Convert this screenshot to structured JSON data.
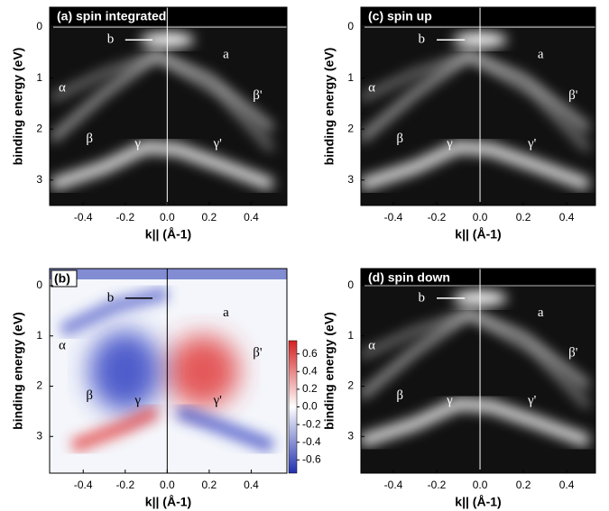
{
  "figure": {
    "panels": [
      {
        "title": "(a) spin integrated",
        "x_label": "k|| (Å-1)",
        "y_label": "binding energy (eV)",
        "xlim": [
          -0.56,
          0.57
        ],
        "ylim": [
          -0.39,
          3.5
        ],
        "xticks": [
          -0.4,
          -0.2,
          {
            "value": 0,
            "label": "0.0"
          },
          0.2,
          0.4
        ],
        "yticks": [
          0,
          1,
          2,
          3
        ],
        "annotations": [
          "b",
          "a",
          "α",
          "β'",
          "β",
          "γ",
          "γ'"
        ]
      },
      {
        "title": "(b)",
        "x_label": "k|| (Å-1)",
        "y_label": "binding energy (eV)",
        "xlim": [
          -0.56,
          0.57
        ],
        "ylim": [
          -0.34,
          3.73
        ],
        "xticks": [
          -0.4,
          -0.2,
          {
            "value": 0,
            "label": "0.0"
          },
          0.2,
          0.4
        ],
        "yticks": [
          0,
          1,
          2,
          3
        ],
        "annotations": [
          "b",
          "a",
          "α",
          "β'",
          "β",
          "γ",
          "γ'"
        ],
        "colorbar": {
          "lim": [
            -0.75,
            0.75
          ],
          "ticks": [
            0.6,
            0.4,
            0.2,
            {
              "value": 0,
              "label": "0.0"
            },
            -0.2,
            -0.4,
            -0.6
          ]
        }
      },
      {
        "title": "(c) spin up",
        "x_label": "k|| (Å-1)",
        "y_label": "binding energy (eV)",
        "xlim": [
          -0.55,
          0.533
        ],
        "ylim": [
          -0.39,
          3.5
        ],
        "xticks": [
          -0.4,
          -0.2,
          {
            "value": 0,
            "label": "0.0"
          },
          0.2,
          0.4
        ],
        "yticks": [
          0,
          1,
          2,
          3
        ],
        "annotations": [
          "b",
          "a",
          "α",
          "β'",
          "β",
          "γ",
          "γ'"
        ]
      },
      {
        "title": "(d) spin down",
        "x_label": "k|| (Å-1)",
        "y_label": "binding energy (eV)",
        "xlim": [
          -0.55,
          0.533
        ],
        "ylim": [
          -0.34,
          3.73
        ],
        "xticks": [
          -0.4,
          -0.2,
          {
            "value": 0,
            "label": "0.0"
          },
          0.2,
          0.4
        ],
        "yticks": [
          0,
          1,
          2,
          3
        ],
        "annotations": [
          "b",
          "a",
          "α",
          "β'",
          "β",
          "γ",
          "γ'"
        ]
      }
    ]
  }
}
